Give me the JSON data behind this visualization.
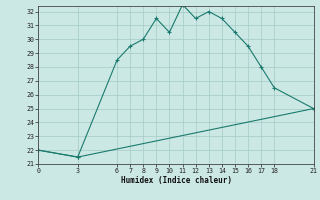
{
  "xlabel": "Humidex (Indice chaleur)",
  "bg_color": "#cce8e4",
  "grid_color": "#aacfcc",
  "line_color": "#1a7a6e",
  "xlim": [
    0,
    21
  ],
  "ylim": [
    21,
    32.4
  ],
  "yticks": [
    21,
    22,
    23,
    24,
    25,
    26,
    27,
    28,
    29,
    30,
    31,
    32
  ],
  "xticks": [
    0,
    3,
    6,
    7,
    8,
    9,
    10,
    11,
    12,
    13,
    14,
    15,
    16,
    17,
    18,
    21
  ],
  "line1_x": [
    0,
    3,
    6,
    7,
    8,
    9,
    10,
    11,
    12,
    13,
    14,
    15,
    16,
    17,
    18,
    21
  ],
  "line1_y": [
    22.0,
    21.5,
    28.5,
    29.5,
    30.0,
    31.5,
    30.5,
    32.5,
    31.5,
    32.0,
    31.5,
    30.5,
    29.5,
    28.0,
    26.5,
    25.0
  ],
  "line2_x": [
    0,
    3,
    21
  ],
  "line2_y": [
    22.0,
    21.5,
    25.0
  ]
}
